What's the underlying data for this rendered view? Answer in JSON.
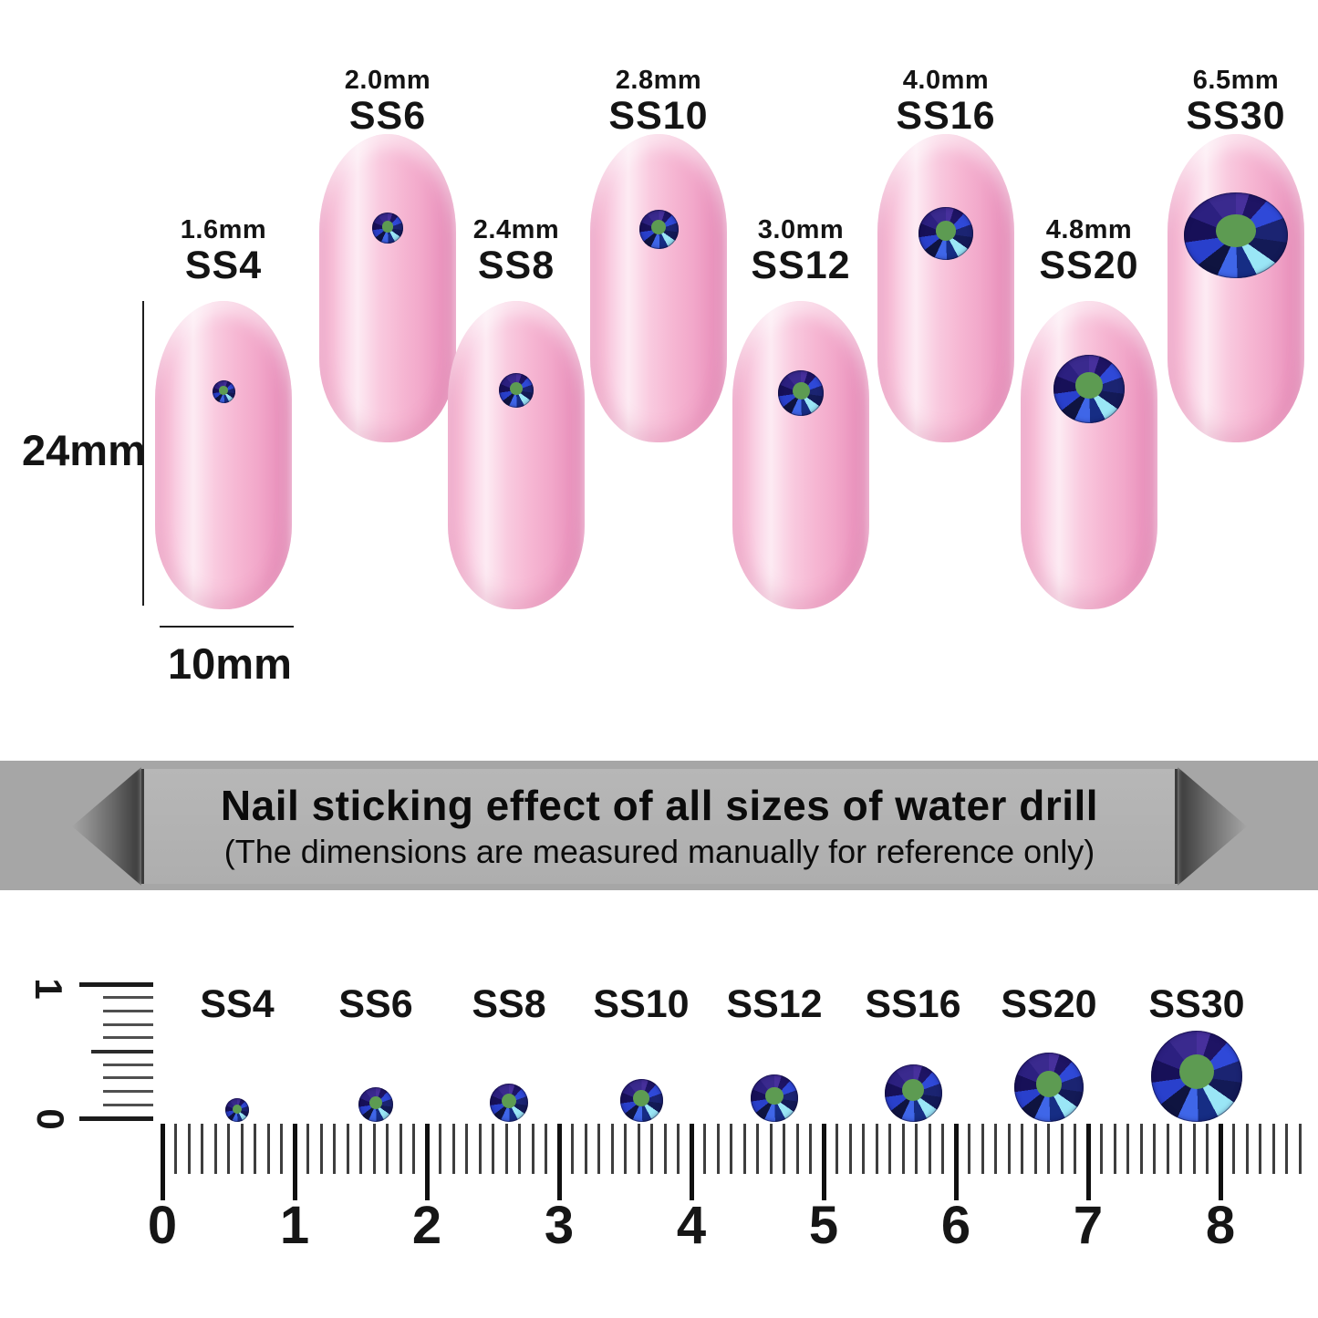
{
  "measure": {
    "height_label": "24mm",
    "width_label": "10mm"
  },
  "banner": {
    "line1": "Nail sticking effect of all sizes of water drill",
    "line2": "(The dimensions are measured manually for reference only)"
  },
  "stones": [
    {
      "code": "SS4",
      "size_label": "1.6mm",
      "mm": 1.6
    },
    {
      "code": "SS6",
      "size_label": "2.0mm",
      "mm": 2.0
    },
    {
      "code": "SS8",
      "size_label": "2.4mm",
      "mm": 2.4
    },
    {
      "code": "SS10",
      "size_label": "2.8mm",
      "mm": 2.8
    },
    {
      "code": "SS12",
      "size_label": "3.0mm",
      "mm": 3.0
    },
    {
      "code": "SS16",
      "size_label": "4.0mm",
      "mm": 4.0
    },
    {
      "code": "SS20",
      "size_label": "4.8mm",
      "mm": 4.8
    },
    {
      "code": "SS30",
      "size_label": "6.5mm",
      "mm": 6.5
    }
  ],
  "ruler": {
    "vertical_top_label": "1",
    "vertical_bottom_label": "0",
    "numbers": [
      "0",
      "1",
      "2",
      "3",
      "4",
      "5",
      "6",
      "7",
      "8"
    ]
  },
  "colors": {
    "nail_pink": "#f6b9d4",
    "nail_highlight": "#fdebf3",
    "stone_navy": "#1b2472",
    "stone_royal": "#2f49d8",
    "stone_cyan": "#9ae6f6",
    "stone_core_green": "#5d9b52",
    "banner_gray": "#a6a6a6",
    "ribbon_gray": "#b3b3b3",
    "tick_black": "#101010",
    "tick_gray": "#3e3e3e"
  }
}
